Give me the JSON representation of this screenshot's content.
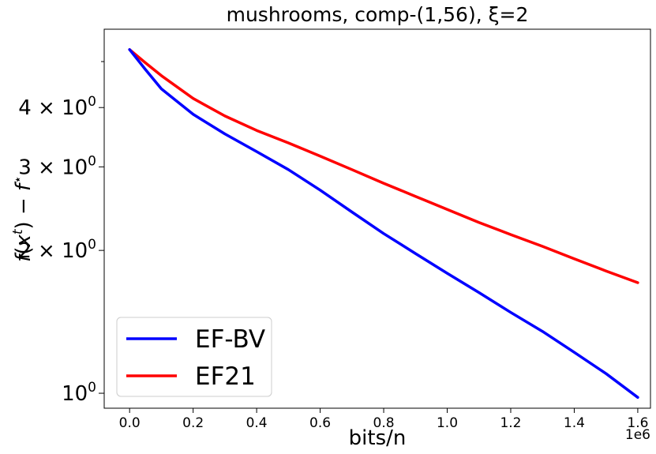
{
  "chart_data": {
    "type": "line",
    "title": "mushrooms, comp-(1,56), ξ=2",
    "xlabel": "bits/n",
    "ylabel": "f(x^t) − f*",
    "x_offset_label": "1e6",
    "y_scale": "log",
    "xlim": [
      -0.08,
      1.64
    ],
    "ylim": [
      0.93,
      5.85
    ],
    "x_ticks": [
      {
        "value": 0.0,
        "label": "0.0"
      },
      {
        "value": 0.2,
        "label": "0.2"
      },
      {
        "value": 0.4,
        "label": "0.4"
      },
      {
        "value": 0.6,
        "label": "0.6"
      },
      {
        "value": 0.8,
        "label": "0.8"
      },
      {
        "value": 1.0,
        "label": "1.0"
      },
      {
        "value": 1.2,
        "label": "1.2"
      },
      {
        "value": 1.4,
        "label": "1.4"
      },
      {
        "value": 1.6,
        "label": "1.6"
      }
    ],
    "y_major_ticks": [
      {
        "value": 1,
        "base": "10",
        "exp": "0"
      },
      {
        "value": 2,
        "base": "2 × 10",
        "exp": "0"
      },
      {
        "value": 3,
        "base": "3 × 10",
        "exp": "0"
      },
      {
        "value": 4,
        "base": "4 × 10",
        "exp": "0"
      }
    ],
    "y_minor_ticks": [
      5
    ],
    "grid": false,
    "legend_position": "lower-left",
    "series": [
      {
        "name": "EF-BV",
        "color": "#0000ff",
        "x": [
          0.0,
          0.05,
          0.1,
          0.2,
          0.3,
          0.4,
          0.5,
          0.6,
          0.7,
          0.8,
          0.9,
          1.0,
          1.1,
          1.2,
          1.3,
          1.4,
          1.5,
          1.6
        ],
        "y": [
          5.3,
          4.81,
          4.38,
          3.87,
          3.52,
          3.23,
          2.96,
          2.68,
          2.41,
          2.17,
          1.97,
          1.79,
          1.63,
          1.48,
          1.35,
          1.22,
          1.1,
          0.98
        ]
      },
      {
        "name": "EF21",
        "color": "#ff0000",
        "x": [
          0.0,
          0.05,
          0.1,
          0.2,
          0.3,
          0.4,
          0.5,
          0.6,
          0.7,
          0.8,
          0.9,
          1.0,
          1.1,
          1.2,
          1.3,
          1.4,
          1.5,
          1.6
        ],
        "y": [
          5.3,
          4.97,
          4.67,
          4.18,
          3.84,
          3.58,
          3.37,
          3.16,
          2.96,
          2.77,
          2.6,
          2.44,
          2.29,
          2.16,
          2.04,
          1.92,
          1.81,
          1.71
        ]
      }
    ]
  }
}
